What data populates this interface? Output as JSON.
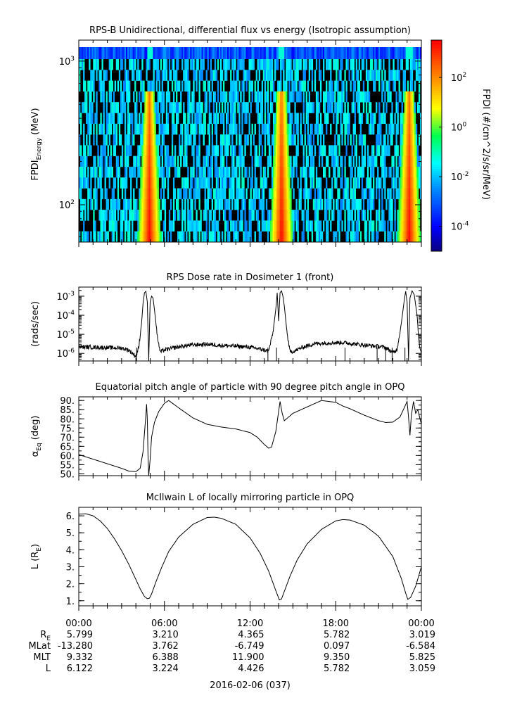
{
  "chart_data": [
    {
      "type": "heatmap",
      "title": "RPS-B  Unidirectional, differential flux vs energy (Isotropic assumption)",
      "ylabel": "FPDI",
      "ylabel_sub": "Energy",
      "ylabel_unit": "(MeV)",
      "yscale": "log",
      "ylim": [
        55,
        1400
      ],
      "yticks": [
        {
          "value": 100,
          "base": "10",
          "exp": "2"
        },
        {
          "value": 1000,
          "base": "10",
          "exp": "3"
        }
      ],
      "xlim": [
        0,
        24
      ],
      "colorbar": {
        "label": "FPDI (#/cm^2/s/sr/MeV)",
        "scale": "log",
        "range": [
          -5,
          3.5
        ],
        "ticks": [
          {
            "base": "10",
            "exp": "2",
            "value": 2
          },
          {
            "base": "10",
            "exp": "0",
            "value": 0
          },
          {
            "base": "10",
            "exp": "-2",
            "value": -2
          },
          {
            "base": "10",
            "exp": "-4",
            "value": -4
          }
        ]
      },
      "belt_crossings_hours": [
        4.9,
        14.15,
        23.1
      ],
      "colors": {
        "high": "#ff2a00",
        "mid": "#ffff00",
        "low": "#00ffff",
        "floor": "#0000ff",
        "empty": "#000000"
      }
    },
    {
      "type": "line",
      "title": "RPS  Dose rate in Dosimeter 1 (front)",
      "ylabel": "(rads/sec)",
      "yscale": "log",
      "ylim": [
        4e-07,
        0.003
      ],
      "yticks": [
        {
          "value": 0.001,
          "base": "10",
          "exp": "-3"
        },
        {
          "value": 0.0001,
          "base": "10",
          "exp": "-4"
        },
        {
          "value": 1e-05,
          "base": "10",
          "exp": "-5"
        },
        {
          "value": 1e-06,
          "base": "10",
          "exp": "-6"
        }
      ],
      "xlim": [
        0,
        24
      ],
      "series": [
        {
          "x": [
            0,
            1,
            2,
            3,
            3.5,
            4.0,
            4.2,
            4.4,
            4.5,
            4.6,
            4.7,
            4.8,
            4.9,
            5.0,
            5.1,
            5.2,
            5.3,
            5.5,
            5.7,
            6.0,
            7,
            8,
            9,
            10,
            11,
            12,
            12.5,
            13.0,
            13.3,
            13.6,
            13.8,
            13.9,
            14.0,
            14.1,
            14.2,
            14.3,
            14.4,
            14.6,
            14.8,
            15.2,
            15.6,
            16.5,
            17.5,
            18.5,
            19.5,
            20.5,
            21.0,
            21.5,
            22.0,
            22.3,
            22.6,
            22.8,
            22.9,
            23.0,
            23.1,
            23.2,
            23.35,
            23.5,
            23.7,
            23.85,
            24.0
          ],
          "y": [
            2.2e-06,
            2.1e-06,
            2e-06,
            1.9e-06,
            1.5e-06,
            7e-07,
            2e-06,
            4e-05,
            0.0004,
            0.0015,
            0.0018,
            0.0005,
            5e-07,
            0.0005,
            0.001,
            0.0008,
            0.0002,
            8e-06,
            1.2e-06,
            1.5e-06,
            2.2e-06,
            2.8e-06,
            3e-06,
            2.6e-06,
            2.4e-06,
            2.1e-06,
            1.8e-06,
            1.5e-06,
            1.3e-06,
            1.2e-05,
            0.0002,
            0.0015,
            5e-05,
            0.0015,
            0.0019,
            0.001,
            0.0003,
            1e-05,
            1.2e-06,
            1.4e-06,
            2e-06,
            3.2e-06,
            3.6e-06,
            3.7e-06,
            3e-06,
            2.5e-06,
            2.3e-06,
            2e-06,
            1.1e-06,
            1.6e-06,
            4e-05,
            0.0006,
            0.0018,
            0.0005,
            5e-07,
            0.0008,
            0.0019,
            0.0012,
            0.0001,
            3e-06,
            8e-07
          ]
        }
      ]
    },
    {
      "type": "line",
      "title": "Equatorial pitch angle of particle with 90 degree pitch angle in OPQ",
      "ylabel": "α",
      "ylabel_sub": "Eq",
      "ylabel_unit": "(deg)",
      "ylim": [
        49,
        92
      ],
      "yticks": [
        50,
        55,
        60,
        65,
        70,
        75,
        80,
        85,
        90
      ],
      "ytick_labels": [
        "50.",
        "55.",
        "60.",
        "65.",
        "70.",
        "75.",
        "80.",
        "85.",
        "90."
      ],
      "xlim": [
        0,
        24
      ],
      "series": [
        {
          "x": [
            0,
            1,
            2,
            3,
            3.5,
            4.0,
            4.3,
            4.5,
            4.6,
            4.7,
            4.75,
            4.8,
            4.85,
            4.9,
            5.0,
            5.1,
            5.3,
            5.6,
            6.0,
            6.3,
            7,
            8,
            9,
            10,
            11,
            12,
            12.5,
            13.0,
            13.3,
            13.5,
            13.8,
            14.0,
            14.1,
            14.25,
            14.4,
            14.7,
            15.0,
            16,
            17,
            18,
            18.5,
            19,
            20,
            21,
            21.5,
            22.0,
            22.5,
            22.8,
            23.0,
            23.1,
            23.2,
            23.3,
            23.45,
            23.6,
            23.75,
            24.0
          ],
          "y": [
            60.5,
            58,
            55.5,
            53,
            51.5,
            51.2,
            53,
            62,
            72,
            82,
            88,
            80,
            60,
            49,
            58,
            70,
            78,
            84,
            88.5,
            90,
            86,
            80.5,
            77,
            75.5,
            74.5,
            72.5,
            70,
            66,
            64,
            64.5,
            73,
            84,
            89.5,
            83,
            79,
            81,
            83,
            86.5,
            90,
            89,
            87,
            85.5,
            82,
            79,
            78,
            78.2,
            81,
            86,
            89.5,
            81,
            71,
            82,
            89.5,
            83,
            85,
            77
          ]
        }
      ]
    },
    {
      "type": "line",
      "title": "McIlwain L of locally mirroring particle in OPQ",
      "ylabel": "L (R",
      "ylabel_sub": "E",
      "ylabel_unit": ")",
      "ylim": [
        0.7,
        6.5
      ],
      "yticks": [
        1,
        2,
        3,
        4,
        5,
        6
      ],
      "ytick_labels": [
        "1.",
        "2.",
        "3.",
        "4.",
        "5.",
        "6."
      ],
      "xlim": [
        0,
        24
      ],
      "series": [
        {
          "x": [
            0,
            0.5,
            1,
            1.5,
            2,
            2.5,
            3,
            3.5,
            4.0,
            4.3,
            4.6,
            4.8,
            4.95,
            5.1,
            5.4,
            5.8,
            6.3,
            7,
            8,
            9,
            9.5,
            10,
            11,
            12,
            12.7,
            13.3,
            13.8,
            14.05,
            14.2,
            14.4,
            14.8,
            15.3,
            16,
            17,
            18,
            18.5,
            19,
            20,
            21,
            22,
            22.6,
            22.9,
            23.05,
            23.25,
            23.6,
            24.0
          ],
          "y": [
            6.1,
            6.12,
            6.0,
            5.7,
            5.25,
            4.65,
            3.95,
            3.15,
            2.25,
            1.7,
            1.25,
            1.12,
            1.15,
            1.4,
            2.1,
            2.95,
            3.9,
            4.75,
            5.5,
            5.9,
            5.92,
            5.85,
            5.5,
            4.7,
            3.8,
            2.75,
            1.6,
            1.05,
            1.1,
            1.55,
            2.45,
            3.4,
            4.35,
            5.2,
            5.7,
            5.78,
            5.75,
            5.45,
            4.8,
            3.6,
            2.3,
            1.45,
            1.08,
            1.2,
            1.85,
            3.0
          ]
        }
      ]
    }
  ],
  "xaxis": {
    "tick_labels": [
      "00:00",
      "06:00",
      "12:00",
      "18:00",
      "00:00"
    ],
    "row_labels": [
      {
        "main": "R",
        "sub": "E"
      },
      {
        "main": "MLat",
        "sub": ""
      },
      {
        "main": "MLT",
        "sub": ""
      },
      {
        "main": "L",
        "sub": ""
      }
    ],
    "rows": [
      [
        "5.799",
        "3.210",
        "4.365",
        "5.782",
        "3.019"
      ],
      [
        "-13.280",
        "3.762",
        "-6.749",
        "0.097",
        "-6.584"
      ],
      [
        "9.332",
        "6.388",
        "11.900",
        "9.350",
        "5.825"
      ],
      [
        "6.122",
        "3.224",
        "4.426",
        "5.782",
        "3.059"
      ]
    ],
    "date_label": "2016-02-06 (037)"
  }
}
